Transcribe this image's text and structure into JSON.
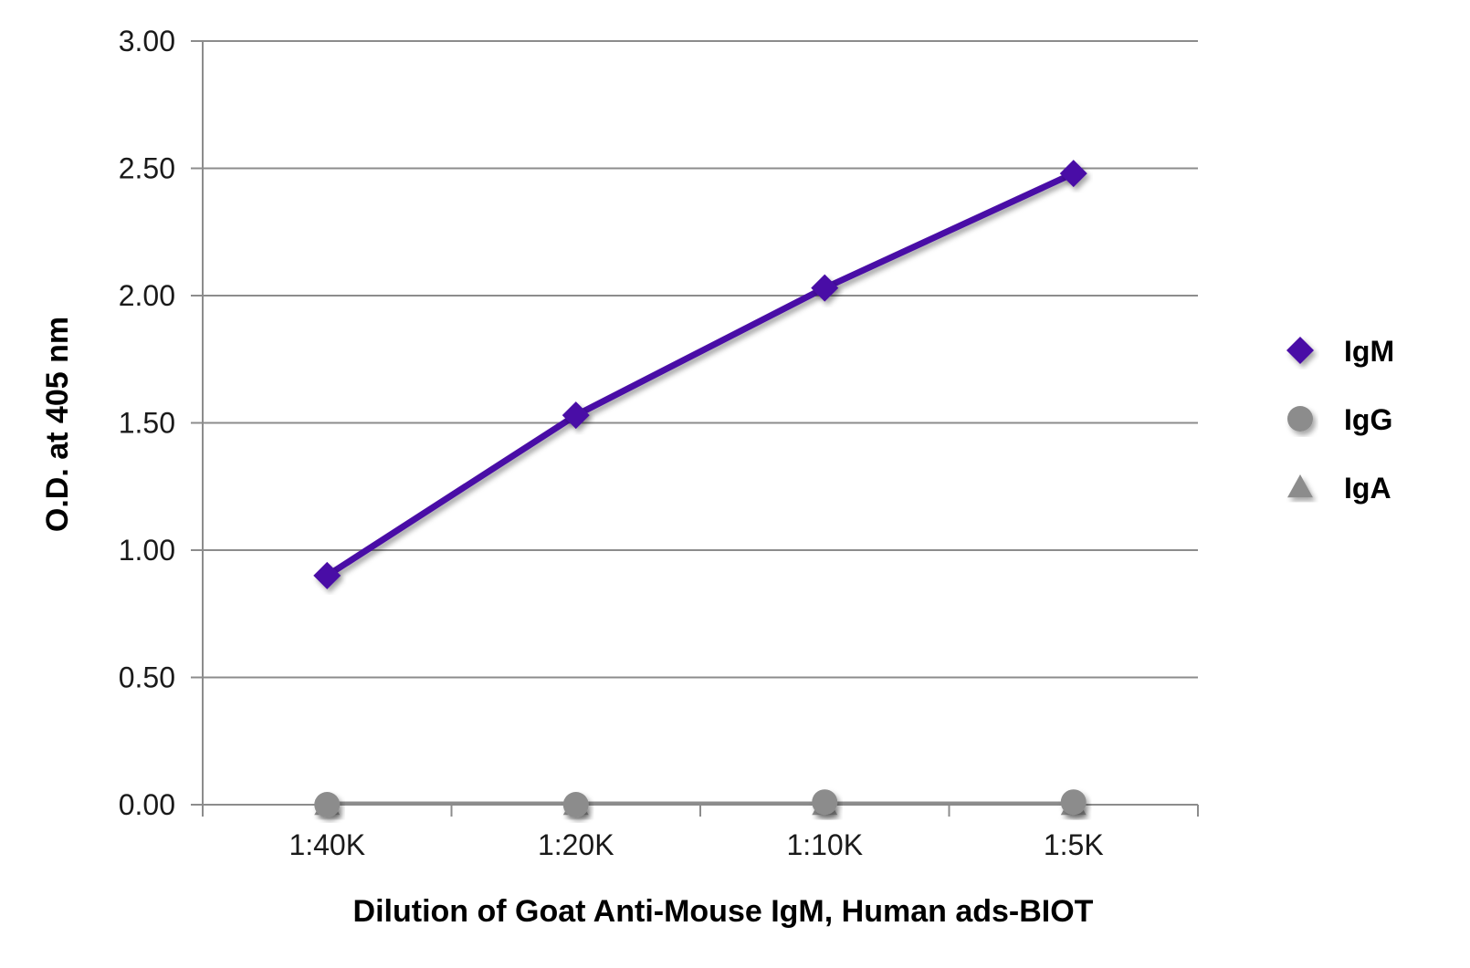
{
  "chart_data": {
    "type": "line",
    "title": "",
    "xlabel": "Dilution of Goat Anti-Mouse IgM, Human ads-BIOT",
    "ylabel": "O.D. at 405 nm",
    "categories": [
      "1:40K",
      "1:20K",
      "1:10K",
      "1:5K"
    ],
    "ylim": [
      0,
      3
    ],
    "yticks": [
      "0.00",
      "0.50",
      "1.00",
      "1.50",
      "2.00",
      "2.50",
      "3.00"
    ],
    "ytick_values": [
      0,
      0.5,
      1,
      1.5,
      2,
      2.5,
      3
    ],
    "grid": "horizontal",
    "legend_position": "right",
    "series": [
      {
        "name": "IgM",
        "values": [
          0.9,
          1.53,
          2.03,
          2.48
        ],
        "color": "#4a0da6",
        "marker": "diamond"
      },
      {
        "name": "IgG",
        "values": [
          0.0,
          0.0,
          0.01,
          0.01
        ],
        "color": "#8c8c8c",
        "marker": "circle"
      },
      {
        "name": "IgA",
        "values": [
          0.0,
          0.0,
          0.0,
          0.0
        ],
        "color": "#8c8c8c",
        "marker": "triangle"
      }
    ]
  }
}
